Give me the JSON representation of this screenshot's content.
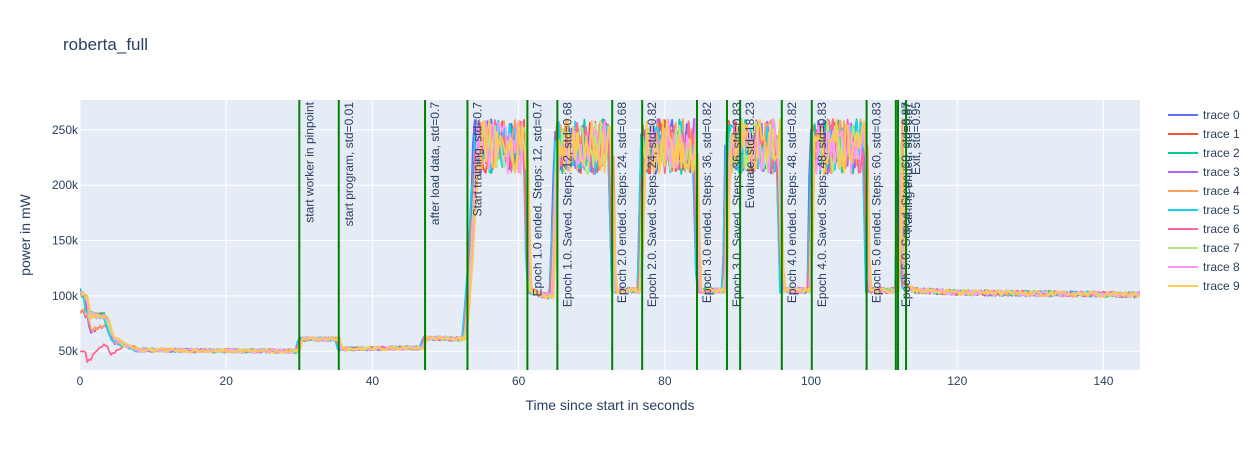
{
  "chart_data": {
    "type": "line",
    "title": "roberta_full",
    "xlabel": "Time since start in seconds",
    "ylabel": "power in mW",
    "xlim": [
      0,
      145
    ],
    "ylim": [
      33000,
      277000
    ],
    "x_ticks": [
      0,
      20,
      40,
      60,
      80,
      100,
      120,
      140
    ],
    "x_tick_labels": [
      "0",
      "20",
      "40",
      "60",
      "80",
      "100",
      "120",
      "140"
    ],
    "y_ticks": [
      50000,
      100000,
      150000,
      200000,
      250000
    ],
    "y_tick_labels": [
      "50k",
      "100k",
      "150k",
      "200k",
      "250k"
    ],
    "grid": true,
    "legend_position": "right",
    "series": [
      {
        "name": "trace 0",
        "color": "#636efa",
        "start": 105000
      },
      {
        "name": "trace 1",
        "color": "#EF553B",
        "start": 104000
      },
      {
        "name": "trace 2",
        "color": "#00cc96",
        "start": 106000
      },
      {
        "name": "trace 3",
        "color": "#ab63fa",
        "start": 84000
      },
      {
        "name": "trace 4",
        "color": "#FFA15A",
        "start": 85000
      },
      {
        "name": "trace 5",
        "color": "#19d3f3",
        "start": 103000
      },
      {
        "name": "trace 6",
        "color": "#FF6692",
        "start": 51000
      },
      {
        "name": "trace 7",
        "color": "#B6E880",
        "start": 104000
      },
      {
        "name": "trace 8",
        "color": "#FF97FF",
        "start": 103000
      },
      {
        "name": "trace 9",
        "color": "#FECB52",
        "start": 102000
      }
    ],
    "profile": [
      [
        0,
        105000
      ],
      [
        0.8,
        100000
      ],
      [
        1.2,
        84000
      ],
      [
        3.5,
        82000
      ],
      [
        4.5,
        62000
      ],
      [
        6,
        56000
      ],
      [
        8,
        51000
      ],
      [
        29.8,
        50000
      ],
      [
        30.2,
        61000
      ],
      [
        35.2,
        61000
      ],
      [
        35.6,
        52000
      ],
      [
        46.8,
        53000
      ],
      [
        47.2,
        62000
      ],
      [
        52.6,
        61000
      ],
      [
        53.4,
        130000
      ],
      [
        54.2,
        235000
      ],
      [
        61,
        235000
      ],
      [
        61.4,
        105000
      ],
      [
        63.5,
        100000
      ],
      [
        64.5,
        100000
      ],
      [
        65.3,
        235000
      ],
      [
        72.6,
        235000
      ],
      [
        73,
        105000
      ],
      [
        76.6,
        105000
      ],
      [
        77,
        235000
      ],
      [
        84.2,
        235000
      ],
      [
        84.6,
        105000
      ],
      [
        88.2,
        105000
      ],
      [
        88.6,
        235000
      ],
      [
        95.6,
        235000
      ],
      [
        96,
        105000
      ],
      [
        99.8,
        105000
      ],
      [
        100.2,
        235000
      ],
      [
        107.4,
        235000
      ],
      [
        107.8,
        105000
      ],
      [
        111.8,
        105000
      ],
      [
        112.2,
        235000
      ],
      [
        112.6,
        110000
      ],
      [
        114,
        105000
      ],
      [
        120,
        103000
      ],
      [
        145,
        101000
      ]
    ],
    "annotations": [
      {
        "x": 30.0,
        "text": "start worker in pinpoint"
      },
      {
        "x": 35.4,
        "text": "start program, std=0.01"
      },
      {
        "x": 47.2,
        "text": "after load data, std=0.7"
      },
      {
        "x": 53.0,
        "text": "Start training, std=0.7"
      },
      {
        "x": 61.2,
        "text": "Epoch 1.0 ended. Steps: 12, std=0.7"
      },
      {
        "x": 65.3,
        "text": "Epoch 1.0. Saved. Steps: 12, std=0.68"
      },
      {
        "x": 72.8,
        "text": "Epoch 2.0 ended. Steps: 24, std=0.68"
      },
      {
        "x": 76.9,
        "text": "Epoch 2.0. Saved. Steps: 24, std=0.82"
      },
      {
        "x": 84.4,
        "text": "Epoch 3.0 ended. Steps: 36, std=0.82"
      },
      {
        "x": 88.5,
        "text": "Epoch 3.0. Saved. Steps: 36, std=0.83"
      },
      {
        "x": 90.3,
        "text": "Evaluate, std=18.23"
      },
      {
        "x": 96.0,
        "text": "Epoch 4.0 ended. Steps: 48, std=0.82"
      },
      {
        "x": 100.1,
        "text": "Epoch 4.0. Saved. Steps: 48, std=0.83"
      },
      {
        "x": 107.6,
        "text": "Epoch 5.0 ended. Steps: 60, std=0.83"
      },
      {
        "x": 111.6,
        "text": "Epoch 5.0. Saved. Steps: 60, std=0.87"
      },
      {
        "x": 111.9,
        "text": "Training ended. std=0.87"
      },
      {
        "x": 113.0,
        "text": "Exit, std=0.95"
      }
    ],
    "annotation_color": "#008000"
  }
}
